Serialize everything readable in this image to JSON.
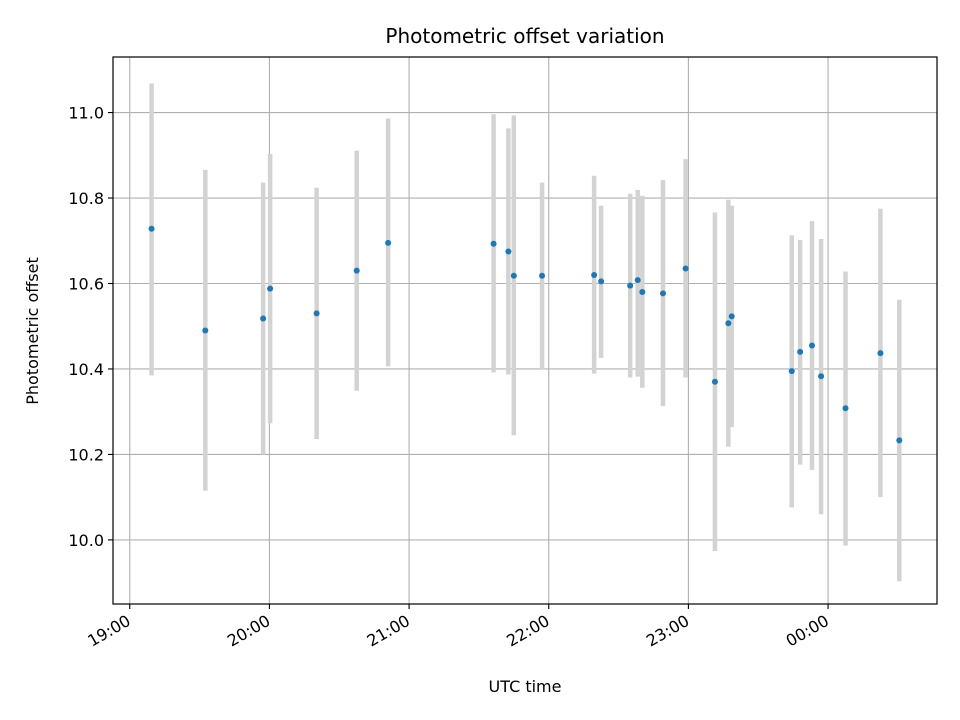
{
  "chart_data": {
    "type": "scatter",
    "title": "Photometric offset variation",
    "xlabel": "UTC time",
    "ylabel": "Photometric offset",
    "grid": true,
    "x_unit": "hours since 19:00 UTC",
    "xlim": [
      -0.12,
      5.78
    ],
    "ylim": [
      9.85,
      11.13
    ],
    "x_ticks": [
      {
        "value": 0,
        "label": "19:00"
      },
      {
        "value": 1,
        "label": "20:00"
      },
      {
        "value": 2,
        "label": "21:00"
      },
      {
        "value": 3,
        "label": "22:00"
      },
      {
        "value": 4,
        "label": "23:00"
      },
      {
        "value": 5,
        "label": "00:00"
      }
    ],
    "y_ticks": [
      {
        "value": 10.0,
        "label": "10.0"
      },
      {
        "value": 10.2,
        "label": "10.2"
      },
      {
        "value": 10.4,
        "label": "10.4"
      },
      {
        "value": 10.6,
        "label": "10.6"
      },
      {
        "value": 10.8,
        "label": "10.8"
      },
      {
        "value": 11.0,
        "label": "11.0"
      }
    ],
    "colors": {
      "point": "#1f77b4",
      "errorbar": "#d3d3d3",
      "grid": "#b0b0b0",
      "axis": "#000000"
    },
    "points": [
      {
        "x": 0.156,
        "y": 10.728,
        "lo": 10.385,
        "hi": 11.068
      },
      {
        "x": 0.541,
        "y": 10.49,
        "lo": 10.115,
        "hi": 10.866
      },
      {
        "x": 0.955,
        "y": 10.518,
        "lo": 10.2,
        "hi": 10.836
      },
      {
        "x": 1.005,
        "y": 10.588,
        "lo": 10.273,
        "hi": 10.903
      },
      {
        "x": 1.338,
        "y": 10.53,
        "lo": 10.236,
        "hi": 10.824
      },
      {
        "x": 1.625,
        "y": 10.63,
        "lo": 10.349,
        "hi": 10.911
      },
      {
        "x": 1.85,
        "y": 10.695,
        "lo": 10.406,
        "hi": 10.986
      },
      {
        "x": 2.605,
        "y": 10.693,
        "lo": 10.392,
        "hi": 10.996
      },
      {
        "x": 2.711,
        "y": 10.675,
        "lo": 10.387,
        "hi": 10.963
      },
      {
        "x": 2.75,
        "y": 10.618,
        "lo": 10.245,
        "hi": 10.993
      },
      {
        "x": 2.952,
        "y": 10.618,
        "lo": 10.4,
        "hi": 10.836
      },
      {
        "x": 3.325,
        "y": 10.62,
        "lo": 10.389,
        "hi": 10.852
      },
      {
        "x": 3.375,
        "y": 10.605,
        "lo": 10.426,
        "hi": 10.782
      },
      {
        "x": 3.583,
        "y": 10.595,
        "lo": 10.38,
        "hi": 10.81
      },
      {
        "x": 3.637,
        "y": 10.608,
        "lo": 10.382,
        "hi": 10.819
      },
      {
        "x": 3.67,
        "y": 10.58,
        "lo": 10.356,
        "hi": 10.805
      },
      {
        "x": 3.818,
        "y": 10.577,
        "lo": 10.313,
        "hi": 10.842
      },
      {
        "x": 3.98,
        "y": 10.635,
        "lo": 10.38,
        "hi": 10.891
      },
      {
        "x": 4.19,
        "y": 10.37,
        "lo": 9.974,
        "hi": 10.766
      },
      {
        "x": 4.286,
        "y": 10.507,
        "lo": 10.218,
        "hi": 10.796
      },
      {
        "x": 4.31,
        "y": 10.523,
        "lo": 10.264,
        "hi": 10.782
      },
      {
        "x": 4.74,
        "y": 10.395,
        "lo": 10.076,
        "hi": 10.713
      },
      {
        "x": 4.8,
        "y": 10.44,
        "lo": 10.176,
        "hi": 10.702
      },
      {
        "x": 4.885,
        "y": 10.455,
        "lo": 10.164,
        "hi": 10.746
      },
      {
        "x": 4.95,
        "y": 10.383,
        "lo": 10.06,
        "hi": 10.704
      },
      {
        "x": 5.125,
        "y": 10.308,
        "lo": 9.987,
        "hi": 10.628
      },
      {
        "x": 5.375,
        "y": 10.437,
        "lo": 10.1,
        "hi": 10.775
      },
      {
        "x": 5.51,
        "y": 10.233,
        "lo": 9.903,
        "hi": 10.562
      }
    ]
  }
}
